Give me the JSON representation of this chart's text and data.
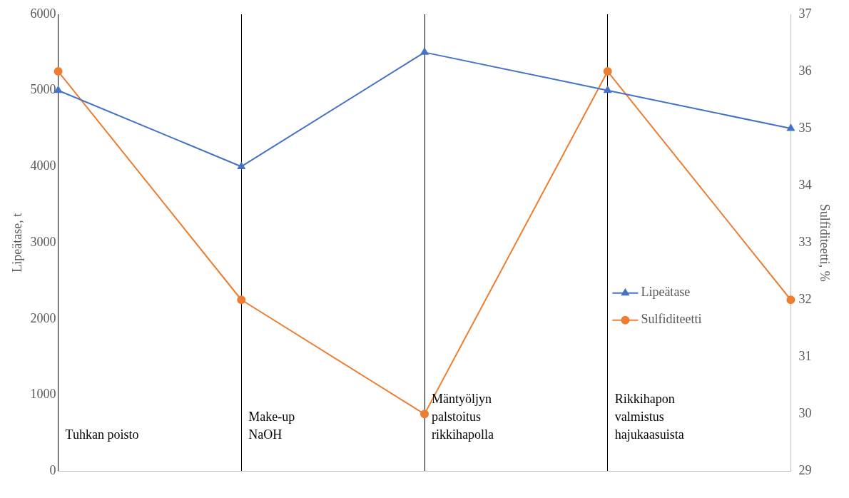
{
  "chart_data": {
    "type": "line",
    "categories": [
      null,
      null,
      null,
      null,
      null
    ],
    "ylabel": "Lipeätase, t",
    "y2label": "Sulfiditeetti, %",
    "ylim": [
      0,
      6000
    ],
    "yticks": [
      0,
      1000,
      2000,
      3000,
      4000,
      5000,
      6000
    ],
    "y2lim": [
      29,
      37
    ],
    "y2ticks": [
      29,
      30,
      31,
      32,
      33,
      34,
      35,
      36,
      37
    ],
    "series": [
      {
        "name": "Lipeätase",
        "color": "#4472c4",
        "marker": "triangle",
        "values": [
          5000,
          4000,
          5500,
          5000,
          4500
        ]
      },
      {
        "name": "Sulfiditeetti",
        "color": "#ed7d31",
        "marker": "circle",
        "axis": "y2",
        "values": [
          36,
          32,
          30,
          36,
          32
        ]
      }
    ],
    "annotations": [
      "Tuhkan poisto",
      "Make-up\nNaOH",
      "Mäntyöljyn\npalstoitus\nrikkihapolla",
      "Rikkihapon\nvalmistus\nhajukaasuista"
    ],
    "grid": "x",
    "legend": "right",
    "line_style": "solid"
  }
}
